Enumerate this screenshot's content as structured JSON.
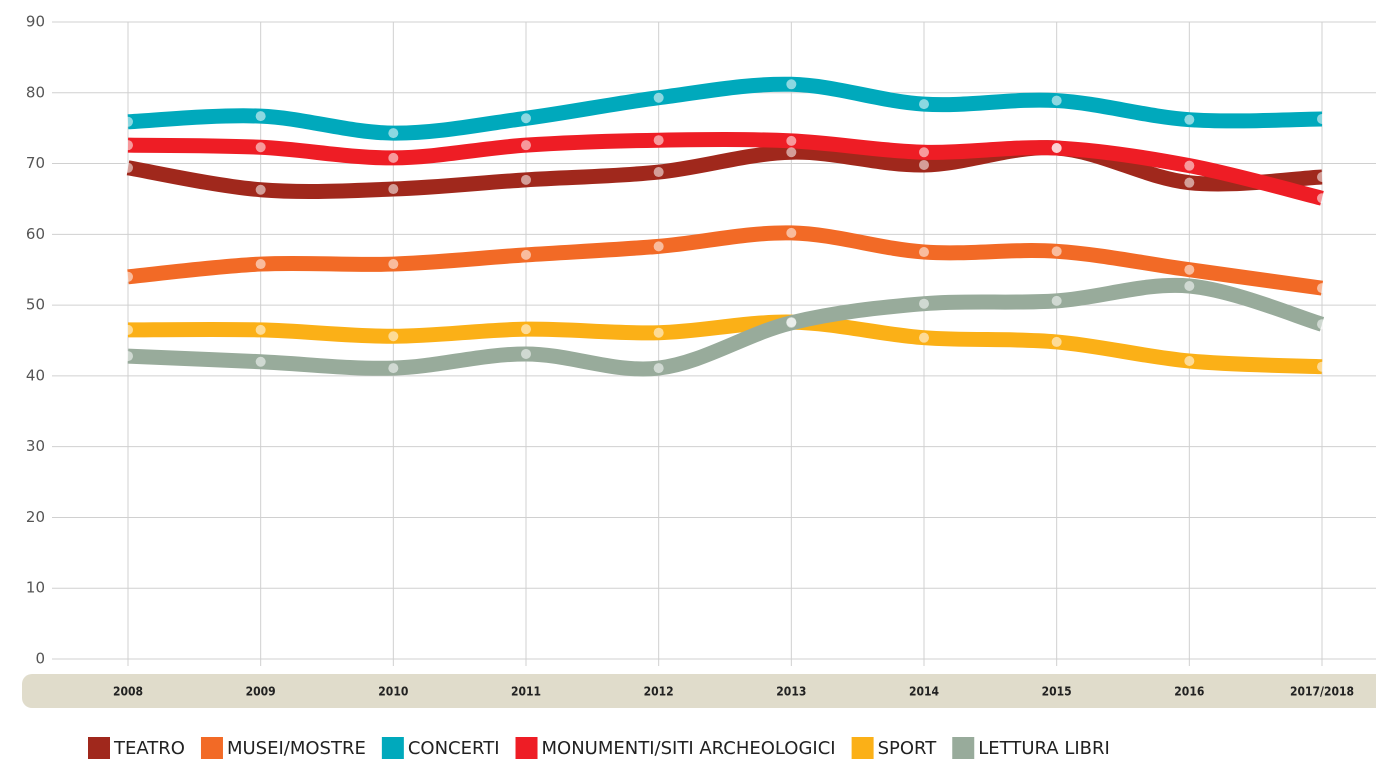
{
  "chart_data": {
    "type": "line",
    "categories": [
      "2008",
      "2009",
      "2010",
      "2011",
      "2012",
      "2013",
      "2014",
      "2015",
      "2016",
      "2017/2018"
    ],
    "series": [
      {
        "name": "TEATRO",
        "color": "#a0281c",
        "values": [
          69.4,
          66.3,
          66.4,
          67.7,
          68.8,
          71.6,
          69.8,
          72.2,
          67.3,
          68.1
        ]
      },
      {
        "name": "MUSEI/MOSTRE",
        "color": "#f26a26",
        "values": [
          54.0,
          55.8,
          55.8,
          57.1,
          58.3,
          60.2,
          57.5,
          57.6,
          55.0,
          52.4
        ]
      },
      {
        "name": "CONCERTI",
        "color": "#00a9bc",
        "values": [
          75.9,
          76.7,
          74.3,
          76.4,
          79.3,
          81.2,
          78.4,
          78.9,
          76.2,
          76.3
        ]
      },
      {
        "name": "MONUMENTI/SITI ARCHEOLOGICI",
        "color": "#ee1d25",
        "values": [
          72.6,
          72.3,
          70.8,
          72.6,
          73.3,
          73.2,
          71.6,
          72.2,
          69.7,
          65.1
        ]
      },
      {
        "name": "SPORT",
        "color": "#fbb017",
        "values": [
          46.5,
          46.5,
          45.6,
          46.6,
          46.1,
          47.6,
          45.4,
          44.8,
          42.1,
          41.3
        ]
      },
      {
        "name": "LETTURA LIBRI",
        "color": "#98ab9b",
        "values": [
          42.8,
          42.0,
          41.1,
          43.1,
          41.1,
          47.5,
          50.2,
          50.6,
          52.7,
          47.3
        ]
      }
    ],
    "ylim": [
      0,
      90
    ],
    "yticks": [
      0,
      10,
      20,
      30,
      40,
      50,
      60,
      70,
      80,
      90
    ],
    "grid": true
  }
}
